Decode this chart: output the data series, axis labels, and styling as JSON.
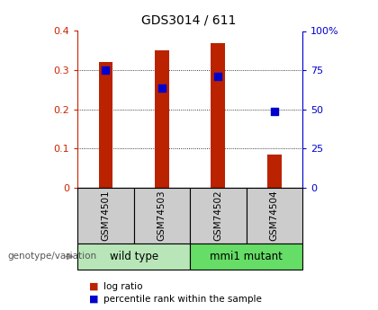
{
  "title": "GDS3014 / 611",
  "samples": [
    "GSM74501",
    "GSM74503",
    "GSM74502",
    "GSM74504"
  ],
  "log_ratio": [
    0.32,
    0.35,
    0.37,
    0.085
  ],
  "percentile_rank": [
    0.3,
    0.255,
    0.285,
    0.195
  ],
  "groups": [
    {
      "label": "wild type",
      "samples": [
        0,
        1
      ],
      "color": "#b8e6b8"
    },
    {
      "label": "mmi1 mutant",
      "samples": [
        2,
        3
      ],
      "color": "#66dd66"
    }
  ],
  "ylim_left": [
    0,
    0.4
  ],
  "ylim_right": [
    0,
    100
  ],
  "yticks_left": [
    0,
    0.1,
    0.2,
    0.3,
    0.4
  ],
  "ytick_labels_left": [
    "0",
    "0.1",
    "0.2",
    "0.3",
    "0.4"
  ],
  "yticks_right": [
    0,
    25,
    50,
    75,
    100
  ],
  "ytick_labels_right": [
    "0",
    "25",
    "50",
    "75",
    "100%"
  ],
  "bar_color": "#bb2200",
  "dot_color": "#0000cc",
  "plot_bg_color": "#ffffff",
  "label_log_ratio": "log ratio",
  "label_percentile": "percentile rank within the sample",
  "genotype_label": "genotype/variation",
  "left_axis_color": "#cc2200",
  "right_axis_color": "#0000cc",
  "sample_box_color": "#cccccc",
  "dot_size": 40,
  "bar_width": 0.25
}
